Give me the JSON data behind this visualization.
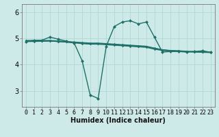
{
  "xlabel": "Humidex (Indice chaleur)",
  "background_color": "#ceeae8",
  "grid_color": "#b0d8d4",
  "line_color": "#1e7068",
  "x_ticks": [
    0,
    1,
    2,
    3,
    4,
    5,
    6,
    7,
    8,
    9,
    10,
    11,
    12,
    13,
    14,
    15,
    16,
    17,
    18,
    19,
    20,
    21,
    22,
    23
  ],
  "ylim": [
    2.4,
    6.3
  ],
  "xlim": [
    -0.5,
    23.5
  ],
  "series1_y": [
    4.87,
    4.93,
    4.93,
    5.05,
    4.97,
    4.9,
    4.83,
    4.15,
    2.85,
    2.72,
    4.7,
    5.45,
    5.62,
    5.67,
    5.55,
    5.62,
    5.05,
    4.48,
    4.5,
    4.5,
    4.48,
    4.5,
    4.53,
    4.47
  ],
  "series2_y": [
    4.9,
    4.9,
    4.9,
    4.9,
    4.88,
    4.86,
    4.84,
    4.82,
    4.8,
    4.8,
    4.78,
    4.76,
    4.74,
    4.72,
    4.7,
    4.68,
    4.62,
    4.56,
    4.53,
    4.52,
    4.5,
    4.49,
    4.48,
    4.47
  ],
  "series3_y": [
    4.92,
    4.92,
    4.92,
    4.92,
    4.9,
    4.88,
    4.86,
    4.84,
    4.82,
    4.82,
    4.8,
    4.78,
    4.76,
    4.74,
    4.72,
    4.7,
    4.63,
    4.57,
    4.54,
    4.53,
    4.51,
    4.5,
    4.49,
    4.48
  ],
  "series4_y": [
    4.88,
    4.88,
    4.89,
    4.9,
    4.88,
    4.86,
    4.83,
    4.8,
    4.78,
    4.78,
    4.76,
    4.74,
    4.72,
    4.7,
    4.68,
    4.66,
    4.59,
    4.54,
    4.52,
    4.51,
    4.49,
    4.48,
    4.47,
    4.46
  ],
  "yticks": [
    3,
    4,
    5,
    6
  ],
  "marker_size": 2.5,
  "line_width": 1.0,
  "xlabel_fontsize": 7,
  "tick_fontsize": 6
}
